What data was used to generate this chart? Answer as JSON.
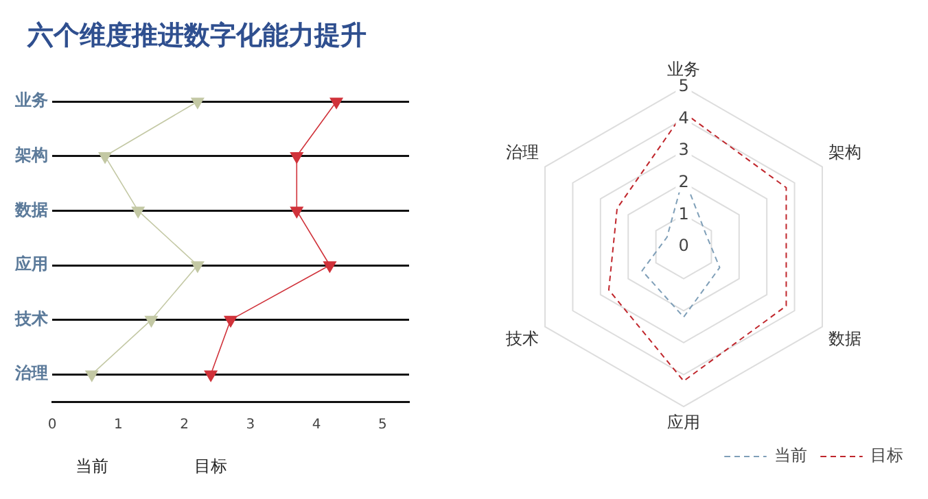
{
  "chart_data": [
    {
      "type": "line",
      "title": "六个维度推进数字化能力提升",
      "orientation": "horizontal",
      "categories": [
        "业务",
        "架构",
        "数据",
        "应用",
        "技术",
        "治理"
      ],
      "series": [
        {
          "name": "当前",
          "color": "#c3c8a4",
          "values": [
            2.2,
            0.8,
            1.3,
            2.2,
            1.5,
            0.6
          ]
        },
        {
          "name": "目标",
          "color": "#d0323a",
          "values": [
            4.3,
            3.7,
            3.7,
            4.2,
            2.7,
            2.4
          ]
        }
      ],
      "xlim": [
        0,
        5.4
      ],
      "xticks": [
        0,
        1,
        2,
        3,
        4,
        5
      ],
      "grid": "y",
      "marker": "triangle"
    },
    {
      "type": "radar",
      "categories": [
        "业务",
        "架构",
        "数据",
        "应用",
        "技术",
        "治理"
      ],
      "series": [
        {
          "name": "当前",
          "color": "#7f9fb8",
          "values": [
            2.2,
            0.8,
            1.3,
            2.2,
            1.5,
            0.6
          ]
        },
        {
          "name": "目标",
          "color": "#c0262c",
          "values": [
            4.2,
            3.7,
            3.7,
            4.2,
            2.7,
            2.4
          ]
        }
      ],
      "ylim": [
        0,
        5
      ],
      "yticks": [
        0,
        1,
        2,
        3,
        4,
        5
      ],
      "line_style": "dashed",
      "marker": "none",
      "legend": "bottom right"
    }
  ]
}
